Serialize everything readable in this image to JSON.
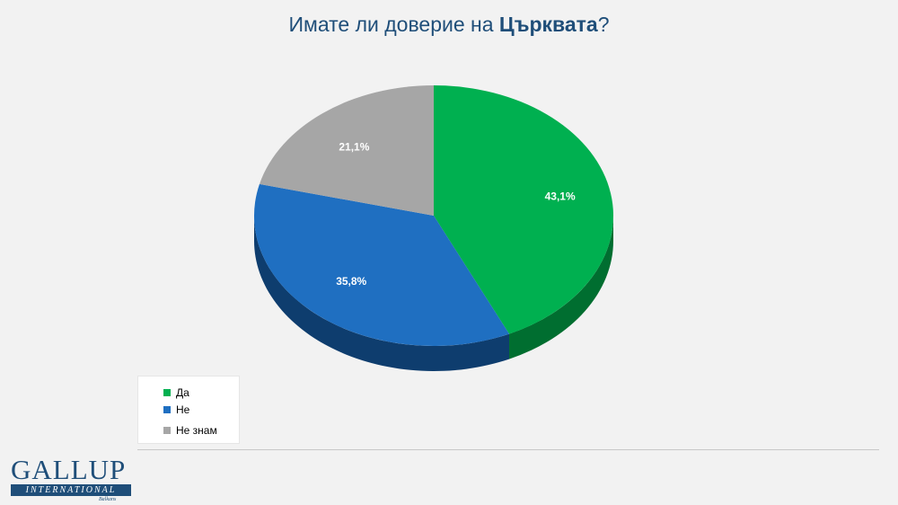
{
  "title": {
    "prefix": "Имате ли доверие на ",
    "bold": "Църквата",
    "suffix": "?"
  },
  "chart_data": {
    "type": "pie",
    "title": "Имате ли доверие на Църквата?",
    "style": "3d",
    "slices": [
      {
        "label": "Да",
        "value": 43.1,
        "value_label": "43,1%",
        "color": "#00b050",
        "side_color": "#006e30"
      },
      {
        "label": "Не",
        "value": 35.8,
        "value_label": "35,8%",
        "color": "#1f6fc1",
        "side_color": "#0e3d6e"
      },
      {
        "label": "Не знам",
        "value": 21.1,
        "value_label": "21,1%",
        "color": "#a6a6a6",
        "side_color": "#6e6e6e"
      }
    ],
    "legend_placement": "bottom-left"
  },
  "logo": {
    "main": "GALLUP",
    "bar": "INTERNATIONAL",
    "sub": "Balkans"
  }
}
